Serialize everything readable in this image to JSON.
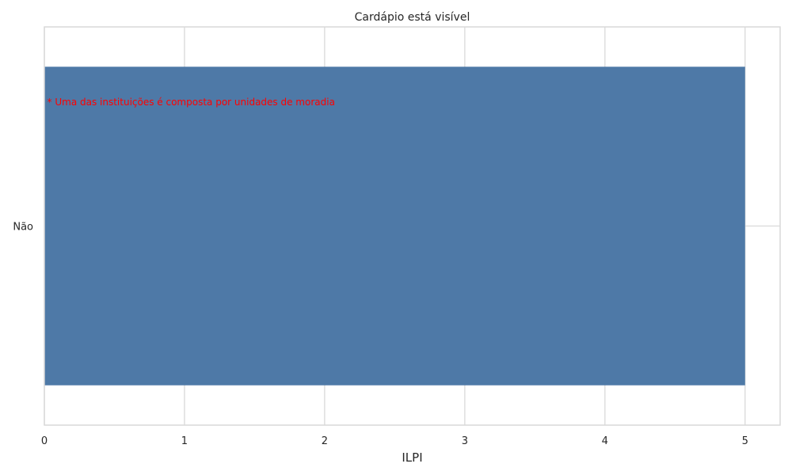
{
  "chart_data": {
    "type": "bar",
    "orientation": "horizontal",
    "title": "Cardápio está visível",
    "xlabel": "ILPI",
    "ylabel": "",
    "categories": [
      "Não"
    ],
    "values": [
      5
    ],
    "xlim": [
      0,
      5.25
    ],
    "xticks": [
      0,
      1,
      2,
      3,
      4,
      5
    ],
    "grid": true,
    "legend": "none",
    "annotation": "* Uma das instituições é composta por unidades de moradia",
    "colors": {
      "bar": "#4e79a7",
      "grid": "#d9d9d9",
      "annotation": "#ff0000",
      "text": "#262626"
    }
  }
}
